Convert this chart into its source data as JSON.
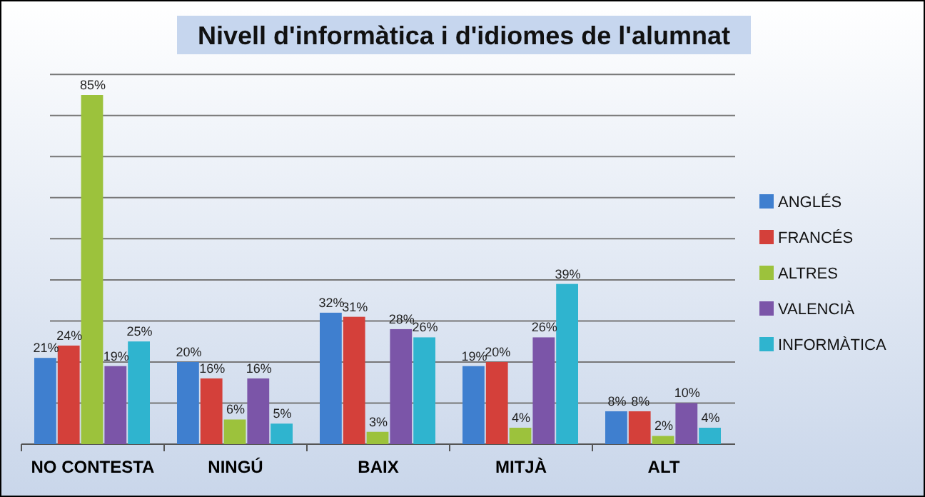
{
  "chart_data": {
    "type": "bar",
    "title": "Nivell d'informàtica  i d'idiomes de l'alumnat",
    "categories": [
      "NO CONTESTA",
      "NINGÚ",
      "BAIX",
      "MITJÀ",
      "ALT"
    ],
    "series": [
      {
        "name": "ANGLÉS",
        "color": "#3f7fcf",
        "values": [
          21,
          20,
          32,
          19,
          8
        ],
        "value_labels": [
          "21%",
          "20%",
          "32%",
          "19%",
          "8%"
        ]
      },
      {
        "name": "FRANCÉS",
        "color": "#d4403a",
        "values": [
          24,
          16,
          31,
          20,
          8
        ],
        "value_labels": [
          "24%",
          "16%",
          "31%",
          "20%",
          "8%"
        ]
      },
      {
        "name": "ALTRES",
        "color": "#9cc23c",
        "values": [
          85,
          6,
          3,
          4,
          2
        ],
        "value_labels": [
          "85%",
          "6%",
          "3%",
          "4%",
          "2%"
        ]
      },
      {
        "name": "VALENCIÀ",
        "color": "#7b55a8",
        "values": [
          19,
          16,
          28,
          26,
          10
        ],
        "value_labels": [
          "19%",
          "16%",
          "28%",
          "26%",
          "10%"
        ]
      },
      {
        "name": "INFORMÀTICA",
        "color": "#2fb4cf",
        "values": [
          25,
          5,
          26,
          39,
          4
        ],
        "value_labels": [
          "25%",
          "5%",
          "26%",
          "39%",
          "4%"
        ]
      }
    ],
    "grid": "y",
    "tick_labels": "x",
    "legend": "right"
  }
}
